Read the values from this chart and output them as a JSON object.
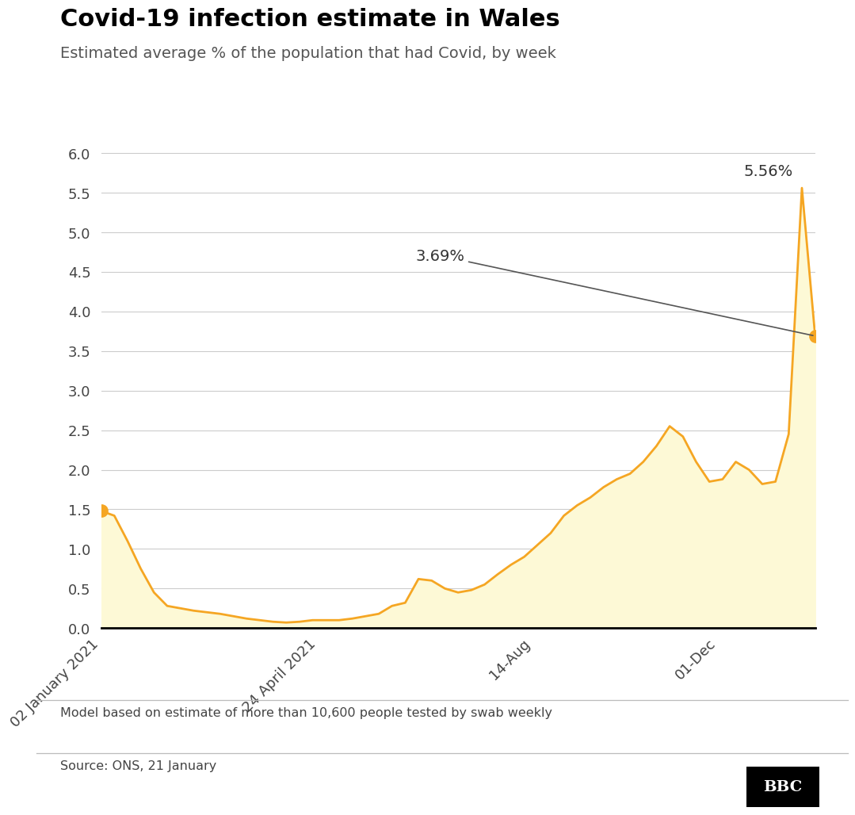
{
  "title": "Covid-19 infection estimate in Wales",
  "subtitle": "Estimated average % of the population that had Covid, by week",
  "footnote": "Model based on estimate of more than 10,600 people tested by swab weekly",
  "source": "Source: ONS, 21 January",
  "line_color": "#f5a623",
  "fill_color": "#fdf9d6",
  "background_color": "#ffffff",
  "ylim": [
    0.0,
    6.4
  ],
  "yticks": [
    0.0,
    0.5,
    1.0,
    1.5,
    2.0,
    2.5,
    3.0,
    3.5,
    4.0,
    4.5,
    5.0,
    5.5,
    6.0
  ],
  "xtick_labels": [
    "02 January 2021",
    "24 April 2021",
    "14-Aug",
    "01-Dec"
  ],
  "xtick_positions": [
    0.0,
    0.305,
    0.605,
    0.865
  ],
  "annotation1_label": "3.69%",
  "annotation2_label": "5.56%",
  "y_values": [
    1.48,
    1.42,
    1.1,
    0.75,
    0.45,
    0.28,
    0.25,
    0.22,
    0.2,
    0.18,
    0.15,
    0.12,
    0.1,
    0.08,
    0.07,
    0.08,
    0.1,
    0.1,
    0.1,
    0.12,
    0.15,
    0.18,
    0.28,
    0.32,
    0.62,
    0.6,
    0.5,
    0.45,
    0.48,
    0.55,
    0.68,
    0.8,
    0.9,
    1.05,
    1.2,
    1.42,
    1.55,
    1.65,
    1.78,
    1.88,
    1.95,
    2.1,
    2.3,
    2.55,
    2.42,
    2.1,
    1.85,
    1.88,
    2.1,
    2.0,
    1.82,
    1.85,
    2.45,
    5.56,
    3.69
  ]
}
